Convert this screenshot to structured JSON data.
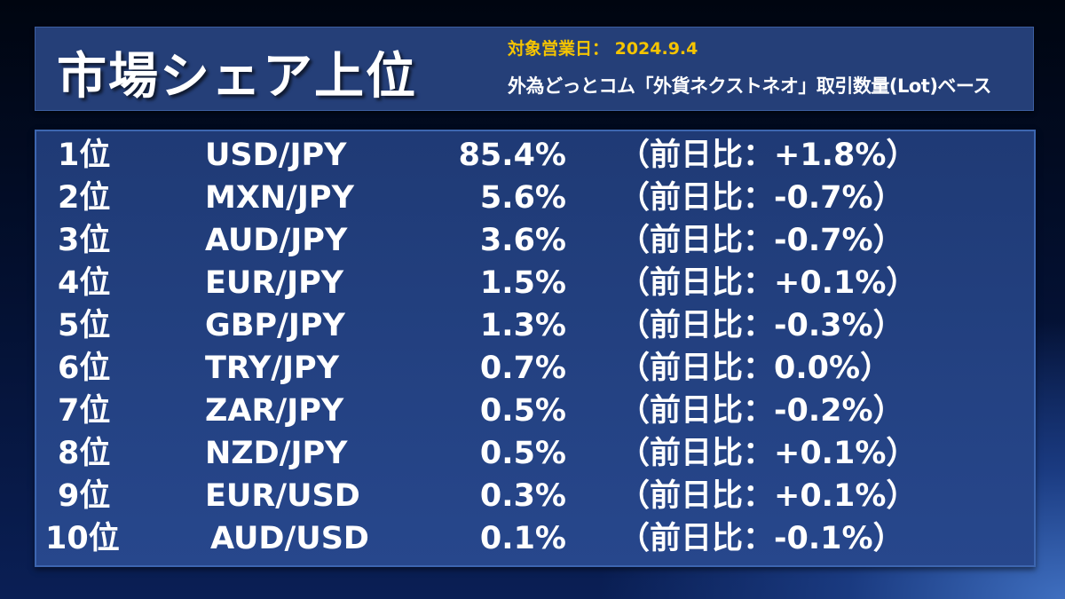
{
  "header": {
    "title": "市場シェア上位",
    "date": "対象営業日： 2024.9.4",
    "basis": "外為どっとコム「外貨ネクストネオ」取引数量(Lot)ベース"
  },
  "colors": {
    "date_text": "#f5c400",
    "panel": "#253f78",
    "text": "#ffffff"
  },
  "rows": [
    {
      "rank": "1位",
      "pair": "USD/JPY",
      "share": "85.4%",
      "change": "（前日比：+1.8%）"
    },
    {
      "rank": "2位",
      "pair": "MXN/JPY",
      "share": "5.6%",
      "change": "（前日比：-0.7%）"
    },
    {
      "rank": "3位",
      "pair": "AUD/JPY",
      "share": "3.6%",
      "change": "（前日比：-0.7%）"
    },
    {
      "rank": "4位",
      "pair": "EUR/JPY",
      "share": "1.5%",
      "change": "（前日比：+0.1%）"
    },
    {
      "rank": "5位",
      "pair": "GBP/JPY",
      "share": "1.3%",
      "change": "（前日比：-0.3%）"
    },
    {
      "rank": "6位",
      "pair": "TRY/JPY",
      "share": "0.7%",
      "change": "（前日比：0.0%）"
    },
    {
      "rank": "7位",
      "pair": "ZAR/JPY",
      "share": "0.5%",
      "change": "（前日比：-0.2%）"
    },
    {
      "rank": "8位",
      "pair": "NZD/JPY",
      "share": "0.5%",
      "change": "（前日比：+0.1%）"
    },
    {
      "rank": "9位",
      "pair": "EUR/USD",
      "share": "0.3%",
      "change": "（前日比：+0.1%）"
    },
    {
      "rank": "10位",
      "pair": "AUD/USD",
      "share": "0.1%",
      "change": "（前日比：-0.1%）"
    }
  ]
}
